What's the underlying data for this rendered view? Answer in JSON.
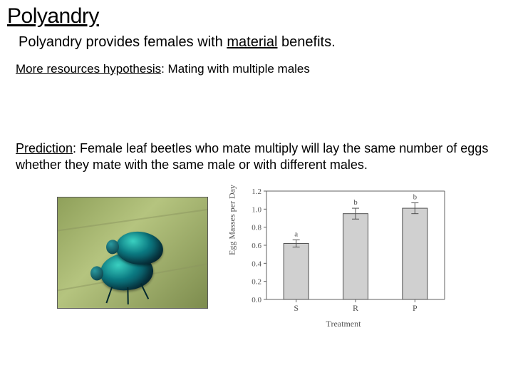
{
  "title": "Polyandry",
  "subtitle_prefix": "Polyandry provides females with ",
  "subtitle_underlined": "material",
  "subtitle_suffix": " benefits.",
  "hypothesis_label": "More resources hypothesis",
  "hypothesis_text": ": Mating with multiple males",
  "prediction_label": "Prediction",
  "prediction_text": ": Female leaf beetles who mate multiply will lay the same number of eggs whether they mate with the same male or with different males.",
  "photo": {
    "subject": "two metallic-green leaf beetles mating on a leaf",
    "beetle_color_highlight": "#3ad0c0",
    "beetle_color_mid": "#0b7a82",
    "beetle_color_dark": "#0a3e4f",
    "leaf_colors": [
      "#8fa05a",
      "#b5c47f",
      "#7d8c4e"
    ]
  },
  "chart": {
    "type": "bar-with-error",
    "ylabel": "Egg Masses per Day",
    "xlabel": "Treatment",
    "ylim": [
      0.0,
      1.2
    ],
    "ytick_step": 0.2,
    "yticks": [
      "0.0",
      "0.2",
      "0.4",
      "0.6",
      "0.8",
      "1.0",
      "1.2"
    ],
    "categories": [
      "S",
      "R",
      "P"
    ],
    "means": [
      0.62,
      0.95,
      1.01
    ],
    "err": [
      0.04,
      0.06,
      0.06
    ],
    "sig_labels": [
      "a",
      "b",
      "b"
    ],
    "bar_fill": "#d0d0d0",
    "bar_stroke": "#505050",
    "err_stroke": "#505050",
    "axis_stroke": "#606060",
    "text_color": "#555555",
    "bar_width_rel": 0.14,
    "background": "#ffffff",
    "font_family": "Times New Roman, serif",
    "label_fontsize": 12,
    "tick_fontsize": 11
  }
}
